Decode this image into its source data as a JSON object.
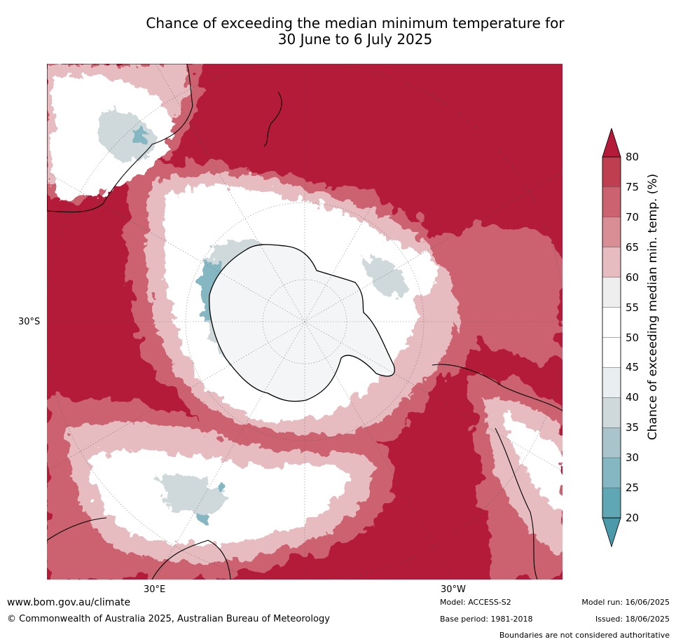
{
  "title_line1": "Chance of exceeding the median minimum temperature for",
  "title_line2": "30 June to 6 July 2025",
  "axis_labels": {
    "lat_30s": "30°S",
    "lon_30e": "30°E",
    "lon_30w": "30°W"
  },
  "colorbar": {
    "label": "Chance of exceeding median min. temp. (%)",
    "ticks": [
      "80",
      "75",
      "70",
      "65",
      "60",
      "55",
      "50",
      "45",
      "40",
      "35",
      "30",
      "25",
      "20"
    ],
    "colors_top_to_bottom": [
      "#b31b38",
      "#bf3f50",
      "#cc6270",
      "#d98e96",
      "#e7bcc0",
      "#eeeeef",
      "#ffffff",
      "#ffffff",
      "#e9eef0",
      "#cfd8db",
      "#a9c5cb",
      "#84b7c1",
      "#5fa7b4"
    ],
    "low_extension_color": "#4a9aaa",
    "high_extension_color": "#b31b38"
  },
  "footer": {
    "website": "www.bom.gov.au/climate",
    "copyright": "© Commonwealth of Australia 2025, Australian Bureau of Meteorology",
    "model": "Model: ACCESS-S2",
    "base_period": "Base period: 1981-2018",
    "model_run": "Model run: 16/06/2025",
    "issued": "Issued: 18/06/2025",
    "disclaimer": "Boundaries are not considered authoritative"
  }
}
